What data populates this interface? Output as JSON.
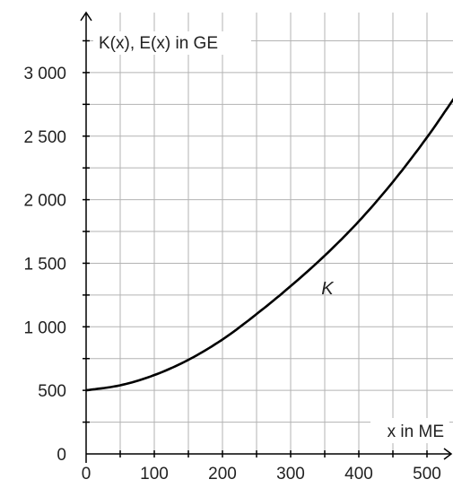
{
  "chart_data": {
    "type": "line",
    "ylabel": "K(x), E(x) in GE",
    "xlabel": "x in ME",
    "xlim": [
      0,
      540
    ],
    "ylim": [
      0,
      3450
    ],
    "x_ticks": [
      0,
      100,
      200,
      300,
      400,
      500
    ],
    "x_tick_labels": [
      "0",
      "100",
      "200",
      "300",
      "400",
      "500"
    ],
    "y_ticks": [
      0,
      500,
      1000,
      1500,
      2000,
      2500,
      3000
    ],
    "y_tick_labels": [
      "0",
      "500",
      "1 000",
      "1 500",
      "2 000",
      "2 500",
      "3 000"
    ],
    "x_minor_step": 50,
    "y_minor_step": 250,
    "grid": true,
    "series": [
      {
        "name": "K",
        "x": [
          0,
          50,
          100,
          150,
          200,
          250,
          300,
          350,
          400,
          450,
          500,
          540
        ],
        "y": [
          500,
          540,
          620,
          740,
          900,
          1100,
          1320,
          1560,
          1830,
          2140,
          2490,
          2800
        ]
      }
    ],
    "annotations": [
      {
        "text": "K",
        "x": 345,
        "y": 1300
      }
    ]
  },
  "colors": {
    "grid": "#b3b3b3",
    "axis": "#000000",
    "curve": "#000000"
  }
}
